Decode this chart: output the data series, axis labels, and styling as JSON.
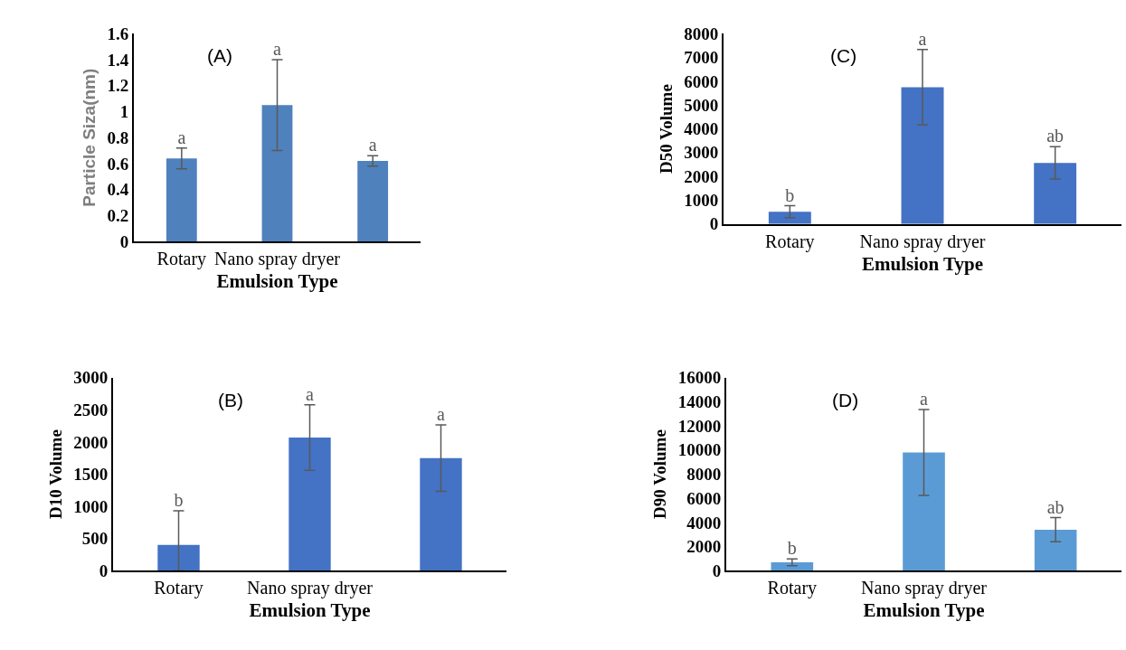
{
  "chart_data": [
    {
      "type": "bar",
      "xlabel": "Emulsion Type",
      "ylabel": "Particle Siza(nm)",
      "categories": [
        "Rotary",
        "Nano spray dryer",
        null
      ],
      "values": [
        0.64,
        1.05,
        0.62
      ],
      "errors": [
        0.08,
        0.35,
        0.04
      ],
      "value_labels": [
        "a",
        "a",
        "a"
      ],
      "color": "#4f81bd",
      "ylim": [
        0,
        1.6
      ],
      "yticks": [
        0,
        0.2,
        0.4,
        0.6,
        0.8,
        1,
        1.2,
        1.4,
        1.6
      ],
      "annotations": [
        "(A)"
      ]
    },
    {
      "type": "bar",
      "xlabel": "Emulsion Type",
      "ylabel": "D50 Volume",
      "categories": [
        "Rotary",
        "Nano spray dryer",
        null
      ],
      "values": [
        520,
        5750,
        2570
      ],
      "errors": [
        250,
        1580,
        680
      ],
      "value_labels": [
        "b",
        "a",
        "ab"
      ],
      "color": "#4472c4",
      "ylim": [
        0,
        8000
      ],
      "yticks": [
        0,
        1000,
        2000,
        3000,
        4000,
        5000,
        6000,
        7000,
        8000
      ],
      "annotations": [
        "(C)"
      ]
    },
    {
      "type": "bar",
      "xlabel": "Emulsion Type",
      "ylabel": "D10 Volume",
      "categories": [
        "Rotary",
        "Nano spray dryer",
        null
      ],
      "values": [
        400,
        2070,
        1750
      ],
      "errors": [
        [
          0,
          930
        ],
        510,
        515
      ],
      "value_labels": [
        "b",
        "a",
        "a"
      ],
      "color": "#4472c4",
      "ylim": [
        0,
        3000
      ],
      "yticks": [
        0,
        500,
        1000,
        1500,
        2000,
        2500,
        3000
      ],
      "annotations": [
        "(B)"
      ]
    },
    {
      "type": "bar",
      "xlabel": "Emulsion Type",
      "ylabel": "D90 Volume",
      "categories": [
        "Rotary",
        "Nano spray dryer",
        null
      ],
      "values": [
        700,
        9800,
        3400
      ],
      "errors": [
        280,
        3550,
        1000
      ],
      "value_labels": [
        "b",
        "a",
        "ab"
      ],
      "color": "#5b9bd5",
      "ylim": [
        0,
        16000
      ],
      "yticks": [
        0,
        2000,
        4000,
        6000,
        8000,
        10000,
        12000,
        14000,
        16000
      ],
      "annotations": [
        "(D)"
      ]
    }
  ]
}
